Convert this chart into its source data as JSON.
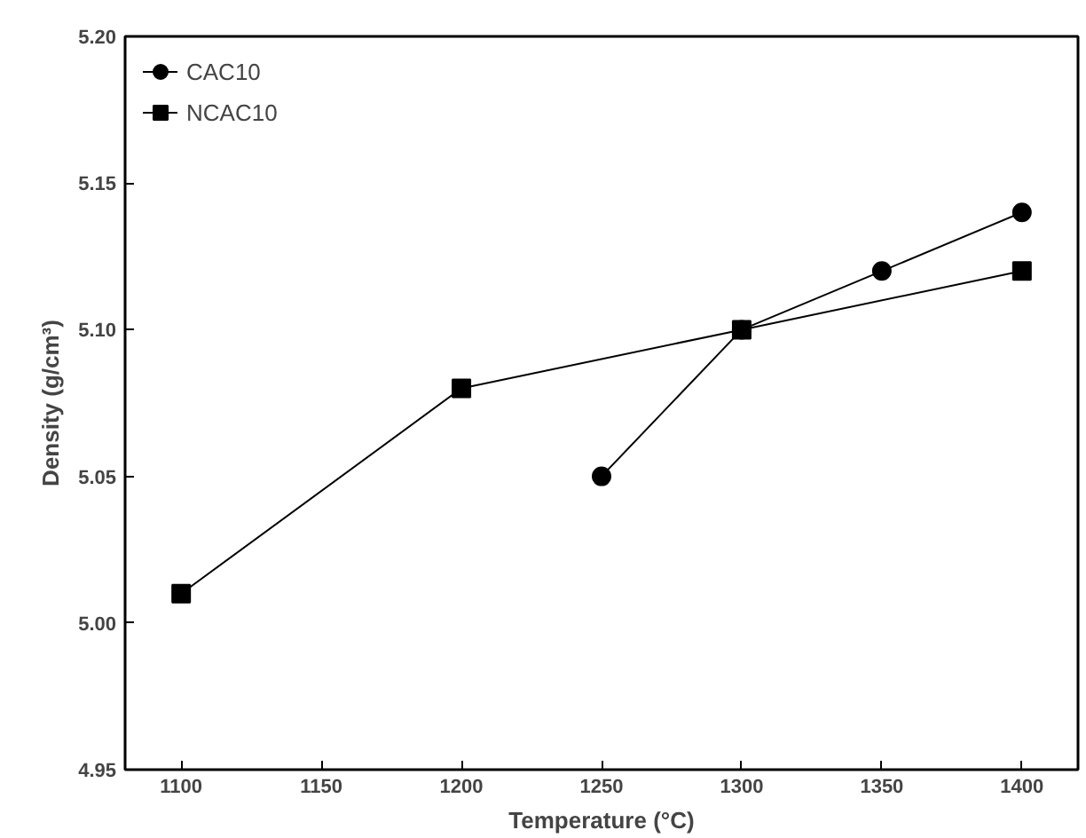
{
  "chart_data": {
    "type": "line",
    "xlabel": "Temperature (°C)",
    "ylabel": "Density (g/cm³)",
    "xlim": [
      1080,
      1420
    ],
    "xticks": [
      1100,
      1150,
      1200,
      1250,
      1300,
      1350,
      1400
    ],
    "ylim": [
      4.95,
      5.2
    ],
    "yticks": [
      {
        "value": 4.95,
        "label": "4.95"
      },
      {
        "value": 5.0,
        "label": "5.00"
      },
      {
        "value": 5.05,
        "label": "5.05"
      },
      {
        "value": 5.1,
        "label": "5.10"
      },
      {
        "value": 5.15,
        "label": "5.15"
      },
      {
        "value": 5.2,
        "label": "5.20"
      }
    ],
    "grid": false,
    "legend": "top left",
    "line_style": "solid",
    "series": [
      {
        "name": "CAC10",
        "color": "#000000",
        "marker": "circle",
        "x": [
          1250,
          1300,
          1350,
          1400
        ],
        "values": [
          5.05,
          5.1,
          5.12,
          5.14
        ]
      },
      {
        "name": "NCAC10",
        "color": "#000000",
        "marker": "square",
        "x": [
          1100,
          1200,
          1300,
          1400
        ],
        "values": [
          5.01,
          5.08,
          5.1,
          5.12
        ]
      }
    ]
  }
}
